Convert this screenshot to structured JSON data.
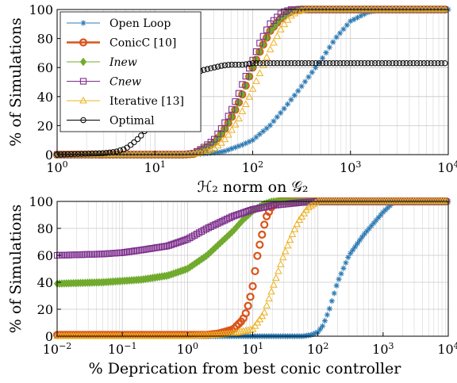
{
  "chart_data": [
    {
      "type": "scatter",
      "xscale": "log",
      "xlim": [
        1,
        10000
      ],
      "ylim": [
        0,
        100
      ],
      "xlabel": "ℋ₂ norm on 𝒢₂",
      "ylabel": "% of Simulations",
      "x_tick_values": [
        1,
        10,
        100,
        1000,
        10000
      ],
      "y_ticks": [
        "0",
        "20",
        "40",
        "60",
        "80",
        "100"
      ],
      "grid": true,
      "legend_position": "top-left",
      "series": [
        {
          "name": "Open Loop",
          "color": "#2e7bb4",
          "marker": "star",
          "x": [
            1,
            20,
            30,
            50,
            80,
            100,
            150,
            200,
            300,
            500,
            700,
            1000,
            1500,
            2000,
            10000
          ],
          "y": [
            0,
            0,
            0.5,
            2,
            7,
            10,
            20,
            30,
            45,
            65,
            80,
            92,
            98,
            100,
            100
          ]
        },
        {
          "name": "ConicC [10]",
          "color": "#d9541a",
          "marker": "circle",
          "x": [
            1,
            20,
            25,
            30,
            40,
            50,
            60,
            70,
            80,
            90,
            100,
            120,
            150,
            200,
            250,
            300,
            10000
          ],
          "y": [
            0,
            0,
            0.5,
            3,
            8,
            16,
            25,
            34,
            43,
            52,
            60,
            72,
            85,
            95,
            99,
            100,
            100
          ]
        },
        {
          "name": "Inew",
          "color": "#70ab2e",
          "marker": "diamond",
          "x": [
            1,
            20,
            25,
            30,
            40,
            50,
            60,
            70,
            80,
            90,
            100,
            120,
            150,
            200,
            250,
            300,
            10000
          ],
          "y": [
            0,
            0,
            0.5,
            3,
            8,
            16,
            25,
            34,
            43,
            52,
            60,
            72,
            85,
            95,
            99,
            100,
            100
          ]
        },
        {
          "name": "Cnew",
          "color": "#7d2e8d",
          "marker": "square",
          "x": [
            1,
            20,
            25,
            30,
            40,
            50,
            60,
            70,
            80,
            100,
            120,
            150,
            200,
            250,
            10000
          ],
          "y": [
            0,
            0,
            1,
            4,
            10,
            20,
            30,
            40,
            50,
            65,
            78,
            90,
            98,
            100,
            100
          ]
        },
        {
          "name": "Iterative [13]",
          "color": "#edb120",
          "marker": "triangle",
          "x": [
            1,
            20,
            30,
            40,
            50,
            60,
            70,
            80,
            90,
            100,
            120,
            150,
            200,
            250,
            300,
            350,
            10000
          ],
          "y": [
            0,
            0,
            1,
            4,
            9,
            16,
            23,
            31,
            38,
            45,
            57,
            72,
            88,
            96,
            99,
            100,
            100
          ]
        },
        {
          "name": "Optimal",
          "color": "#000000",
          "marker": "circle-open",
          "x": [
            1,
            3,
            4,
            5,
            6,
            7,
            8,
            9,
            10,
            12,
            15,
            20,
            30,
            40,
            50,
            60,
            80,
            100,
            10000
          ],
          "y": [
            0,
            1,
            2,
            4,
            8,
            12,
            17,
            22,
            27,
            35,
            45,
            52,
            58,
            60,
            61.5,
            62,
            62,
            63,
            63
          ]
        }
      ]
    },
    {
      "type": "scatter",
      "xscale": "log",
      "xlim": [
        0.01,
        10000
      ],
      "ylim": [
        0,
        100
      ],
      "xlabel": "% Deprication from best conic controller",
      "ylabel": "% of Simulations",
      "x_tick_values": [
        0.01,
        0.1,
        1,
        10,
        100,
        1000,
        10000
      ],
      "y_ticks": [
        "0",
        "20",
        "40",
        "60",
        "80",
        "100"
      ],
      "grid": true,
      "series": [
        {
          "name": "Open Loop",
          "color": "#2e7bb4",
          "marker": "star",
          "x": [
            0.01,
            60,
            80,
            100,
            120,
            150,
            200,
            300,
            500,
            1000,
            1500,
            10000
          ],
          "y": [
            0,
            0,
            1,
            3,
            8,
            20,
            40,
            60,
            75,
            92,
            100,
            100
          ]
        },
        {
          "name": "ConicC [10]",
          "color": "#d9541a",
          "marker": "circle",
          "x": [
            0.01,
            1,
            2,
            3,
            5,
            7,
            8,
            9,
            10,
            11,
            12,
            14,
            16,
            20,
            25,
            10000
          ],
          "y": [
            1,
            1,
            1,
            2,
            5,
            12,
            18,
            27,
            37,
            50,
            62,
            76,
            88,
            97,
            100,
            100
          ]
        },
        {
          "name": "Inew",
          "color": "#70ab2e",
          "marker": "diamond",
          "x": [
            0.01,
            0.05,
            0.1,
            0.2,
            0.5,
            1,
            2,
            3,
            5,
            7,
            10,
            15,
            20,
            30,
            10000
          ],
          "y": [
            39,
            40,
            41,
            42,
            45,
            50,
            60,
            68,
            78,
            86,
            93,
            98,
            100,
            100,
            100
          ]
        },
        {
          "name": "Cnew",
          "color": "#7d2e8d",
          "marker": "square",
          "x": [
            0.01,
            0.05,
            0.1,
            0.2,
            0.5,
            1,
            2,
            5,
            10,
            20,
            50,
            100,
            10000
          ],
          "y": [
            60,
            61,
            62,
            64,
            67,
            72,
            80,
            89,
            94,
            97,
            99,
            100,
            100
          ]
        },
        {
          "name": "Iterative [13]",
          "color": "#edb120",
          "marker": "triangle",
          "x": [
            0.01,
            1,
            3,
            5,
            10,
            15,
            20,
            30,
            40,
            50,
            70,
            100,
            10000
          ],
          "y": [
            0,
            0,
            1,
            2,
            5,
            17,
            35,
            60,
            75,
            85,
            95,
            100,
            100
          ]
        },
        {
          "name": "Optimal",
          "color": "#000000",
          "marker": "circle-open",
          "x": [],
          "y": []
        }
      ]
    }
  ]
}
